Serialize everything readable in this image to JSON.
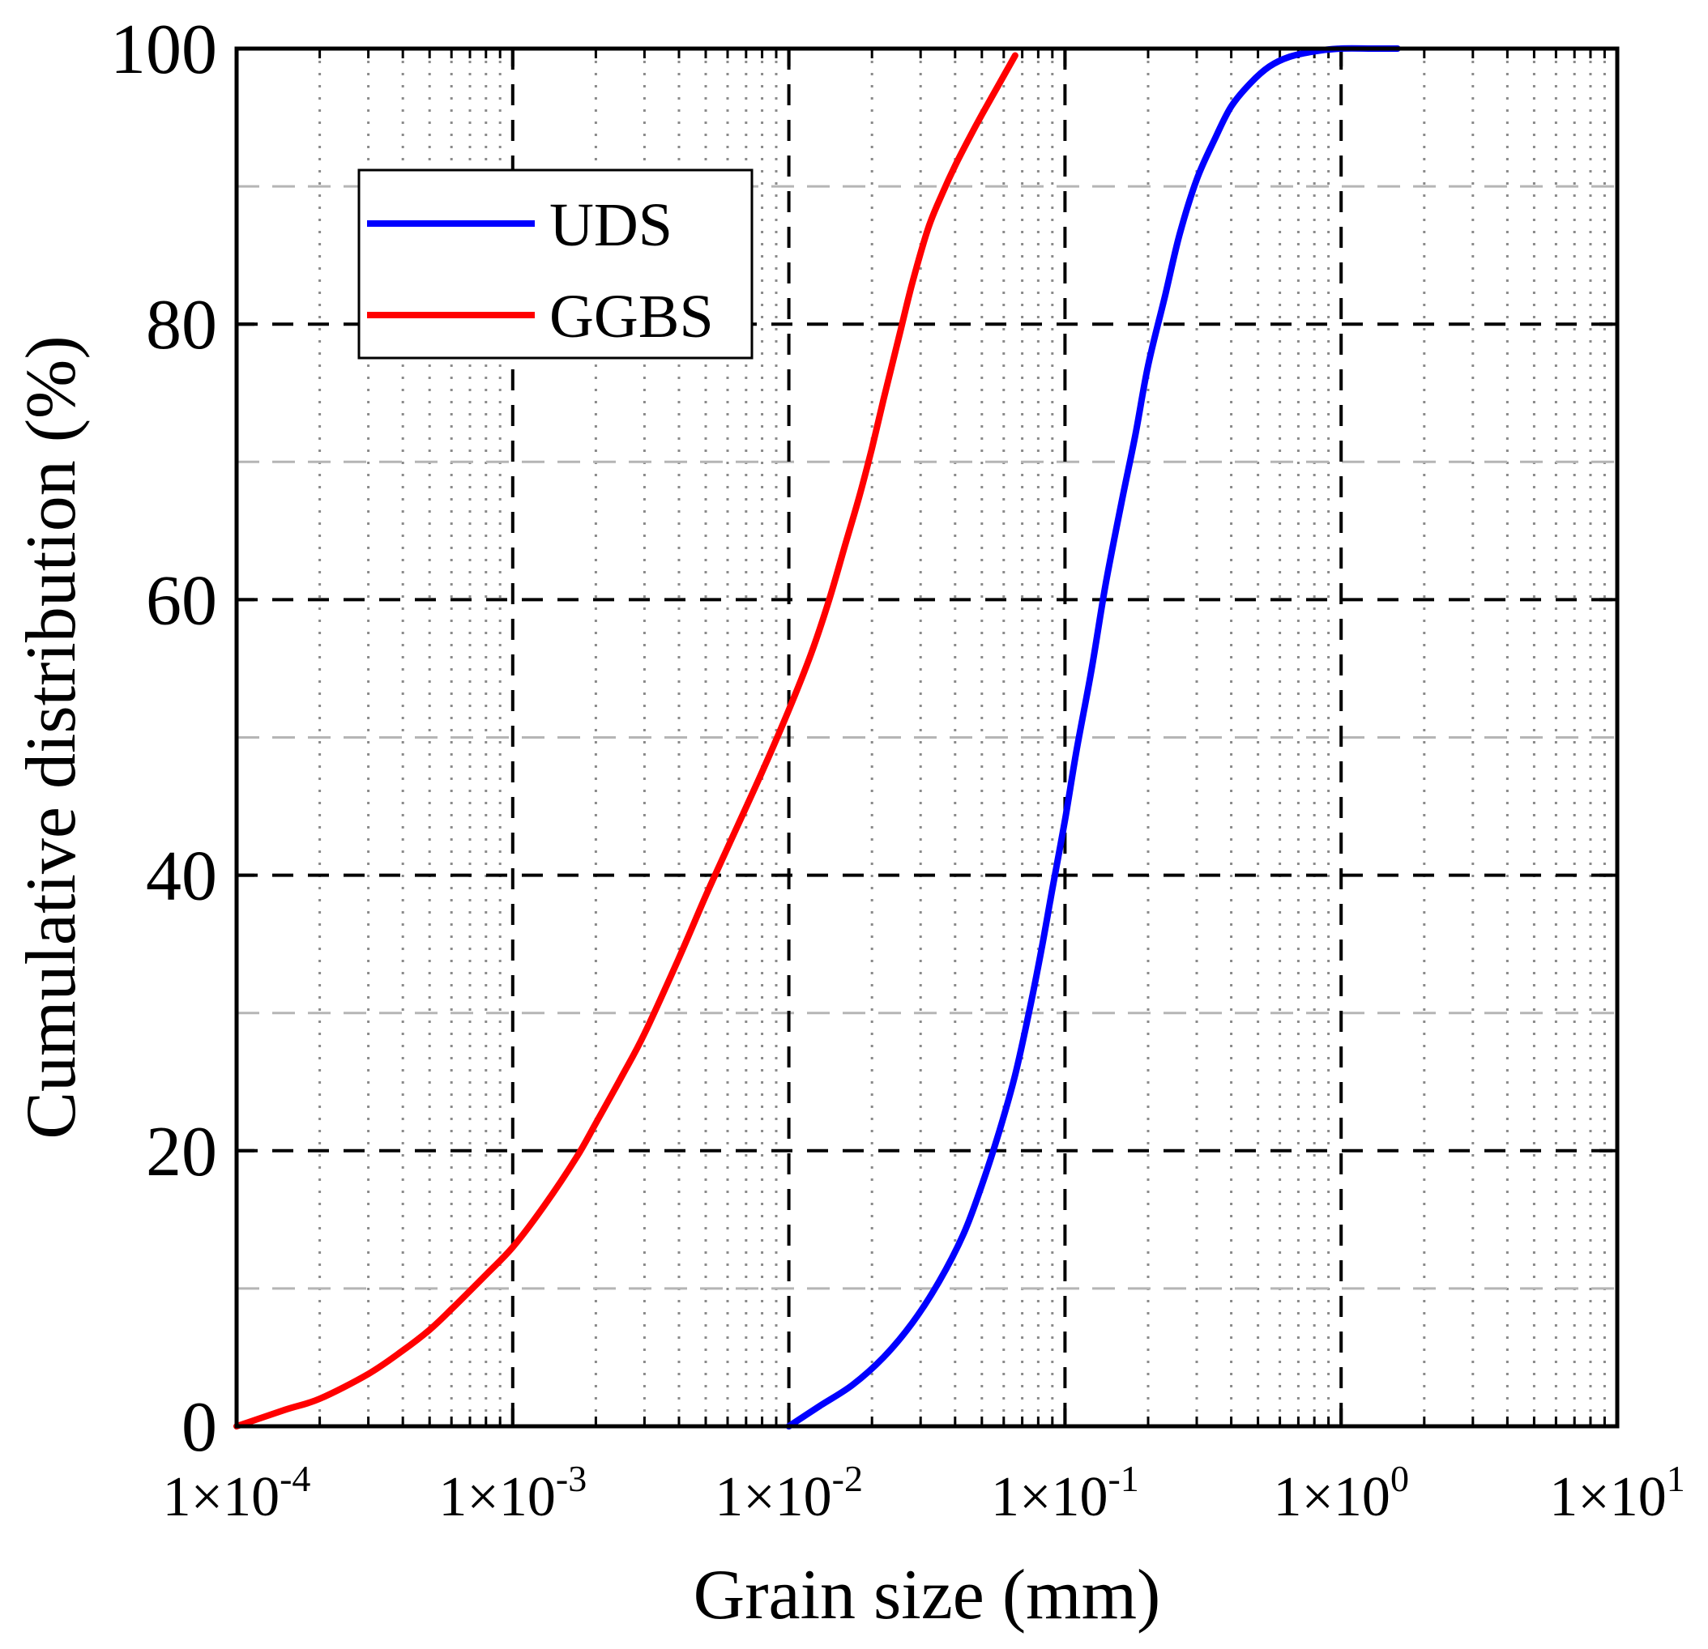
{
  "chart_data": {
    "type": "line",
    "title": "",
    "xlabel": "Grain size (mm)",
    "ylabel": "Cumulative distribution (%)",
    "xscale": "log",
    "xlim": [
      0.0001,
      10
    ],
    "ylim": [
      0,
      100
    ],
    "x_tick_labels": [
      {
        "value": 0.0001,
        "mant": "1×10",
        "exp": "-4"
      },
      {
        "value": 0.001,
        "mant": "1×10",
        "exp": "-3"
      },
      {
        "value": 0.01,
        "mant": "1×10",
        "exp": "-2"
      },
      {
        "value": 0.1,
        "mant": "1×10",
        "exp": "-1"
      },
      {
        "value": 1,
        "mant": "1×10",
        "exp": "0"
      },
      {
        "value": 10,
        "mant": "1×10",
        "exp": "1"
      }
    ],
    "y_tick_labels": [
      "0",
      "20",
      "40",
      "60",
      "80",
      "100"
    ],
    "y_ticks": [
      0,
      20,
      40,
      60,
      80,
      100
    ],
    "y_minor_gridlines": [
      10,
      30,
      50,
      70,
      90
    ],
    "grid": true,
    "legend_position": "top-left",
    "series": [
      {
        "name": "UDS",
        "color": "#0000ff",
        "x": [
          0.01,
          0.013,
          0.017,
          0.022,
          0.028,
          0.035,
          0.043,
          0.05,
          0.058,
          0.066,
          0.074,
          0.082,
          0.09,
          0.1,
          0.11,
          0.125,
          0.14,
          0.16,
          0.18,
          0.2,
          0.23,
          0.26,
          0.3,
          0.35,
          0.4,
          0.47,
          0.55,
          0.65,
          0.8,
          1.0,
          1.3,
          1.6
        ],
        "y": [
          0,
          1.5,
          3,
          5,
          7.5,
          10.5,
          14,
          17.5,
          21.5,
          25.5,
          30,
          34.5,
          39,
          44,
          49,
          55,
          61,
          67,
          72,
          77,
          82,
          86.5,
          90.5,
          93.5,
          95.8,
          97.5,
          98.7,
          99.4,
          99.8,
          100,
          100,
          100
        ]
      },
      {
        "name": "GGBS",
        "color": "#ff0000",
        "x": [
          0.0001,
          0.00015,
          0.0002,
          0.0003,
          0.0004,
          0.0005,
          0.0006,
          0.0008,
          0.001,
          0.0013,
          0.0017,
          0.002,
          0.0025,
          0.003,
          0.004,
          0.005,
          0.006,
          0.008,
          0.01,
          0.012,
          0.014,
          0.016,
          0.018,
          0.02,
          0.022,
          0.025,
          0.028,
          0.032,
          0.036,
          0.04,
          0.045,
          0.05,
          0.058,
          0.066
        ],
        "y": [
          0,
          1.2,
          2,
          3.8,
          5.5,
          7,
          8.5,
          11,
          13,
          16,
          19.5,
          22,
          25.5,
          28.5,
          34,
          38.5,
          42,
          47.5,
          52,
          56,
          60,
          64,
          67.5,
          71,
          74.5,
          79,
          83,
          87,
          89.5,
          91.5,
          93.5,
          95.2,
          97.5,
          99.5
        ]
      }
    ]
  }
}
